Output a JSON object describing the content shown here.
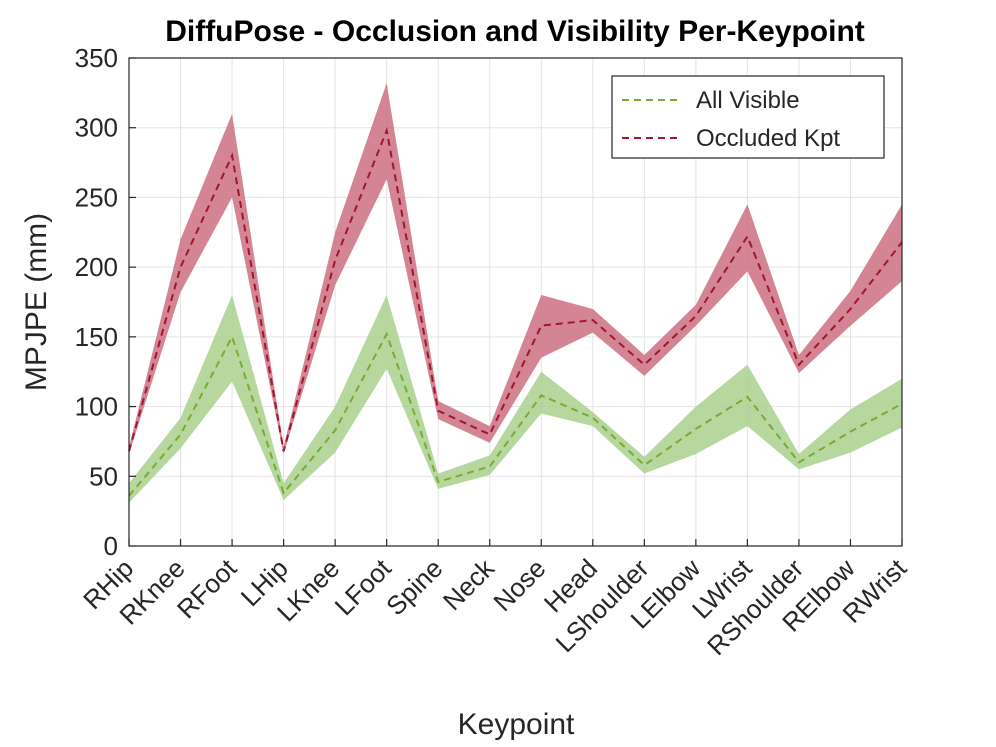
{
  "chart_data": {
    "type": "line",
    "title": "DiffuPose - Occlusion and Visibility Per-Keypoint",
    "xlabel": "Keypoint",
    "ylabel": "MPJPE (mm)",
    "ylim": [
      0,
      350
    ],
    "yticks": [
      0,
      50,
      100,
      150,
      200,
      250,
      300,
      350
    ],
    "grid": true,
    "legend_position": "top-right",
    "categories": [
      "RHip",
      "RKnee",
      "RFoot",
      "LHip",
      "LKnee",
      "LFoot",
      "Spine",
      "Neck",
      "Nose",
      "Head",
      "LShoulder",
      "LElbow",
      "LWrist",
      "RShoulder",
      "RElbow",
      "RWrist"
    ],
    "series": [
      {
        "name": "All Visible",
        "color": "#77ac30",
        "band_color": "#a9d18e",
        "line_style": "dashed",
        "values": [
          36,
          80,
          150,
          38,
          83,
          152,
          46,
          57,
          108,
          92,
          58,
          84,
          107,
          60,
          82,
          102
        ],
        "lower": [
          31,
          70,
          118,
          33,
          67,
          127,
          41,
          51,
          95,
          86,
          52,
          66,
          86,
          55,
          67,
          85
        ],
        "upper": [
          45,
          92,
          180,
          45,
          100,
          180,
          52,
          65,
          125,
          96,
          64,
          100,
          130,
          66,
          98,
          120
        ]
      },
      {
        "name": "Occluded Kpt",
        "color": "#a2142f",
        "band_color": "#cc7080",
        "line_style": "dashed",
        "values": [
          68,
          200,
          280,
          68,
          205,
          298,
          97,
          80,
          158,
          162,
          130,
          165,
          222,
          130,
          170,
          218
        ],
        "lower": [
          66,
          182,
          250,
          66,
          187,
          263,
          91,
          74,
          135,
          153,
          122,
          158,
          197,
          124,
          158,
          190
        ],
        "upper": [
          71,
          220,
          310,
          71,
          225,
          332,
          104,
          86,
          180,
          170,
          137,
          173,
          245,
          137,
          183,
          245
        ]
      }
    ]
  }
}
